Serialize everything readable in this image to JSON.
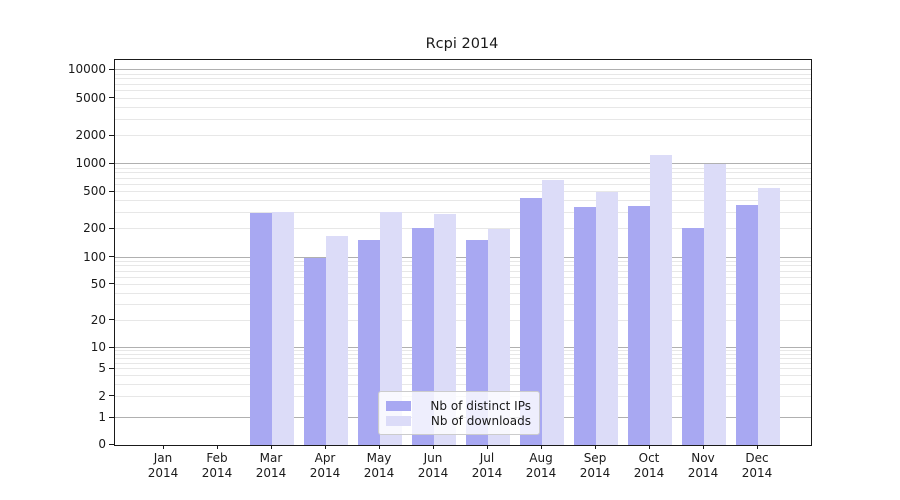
{
  "chart_data": {
    "type": "bar",
    "title": "Rcpi 2014",
    "categories": [
      "Jan 2014",
      "Feb 2014",
      "Mar 2014",
      "Apr 2014",
      "May 2014",
      "Jun 2014",
      "Jul 2014",
      "Aug 2014",
      "Sep 2014",
      "Oct 2014",
      "Nov 2014",
      "Dec 2014"
    ],
    "series": [
      {
        "name": "Nb of distinct IPs",
        "color": "#a8a8f2",
        "values": [
          0,
          0,
          300,
          100,
          155,
          210,
          155,
          440,
          350,
          360,
          210,
          365
        ]
      },
      {
        "name": "Nb of downloads",
        "color": "#dcdcf8",
        "values": [
          0,
          0,
          305,
          170,
          305,
          290,
          200,
          680,
          500,
          1270,
          1000,
          560
        ]
      }
    ],
    "xlabel": "",
    "ylabel": "",
    "yscale": "log",
    "yticks": [
      0,
      1,
      2,
      5,
      10,
      20,
      50,
      100,
      200,
      500,
      1000,
      2000,
      5000,
      10000
    ],
    "ylim": [
      0,
      12500
    ],
    "grid": true,
    "legend_position": "lower center",
    "colors": {
      "bar_distinct_ips": "#a8a8f2",
      "bar_downloads": "#dcdcf8",
      "major_grid": "#b0b0b0",
      "minor_grid": "#e7e7e7",
      "axis_text": "#1a1a1a",
      "legend_border": "#cccccc",
      "background": "#ffffff"
    }
  }
}
